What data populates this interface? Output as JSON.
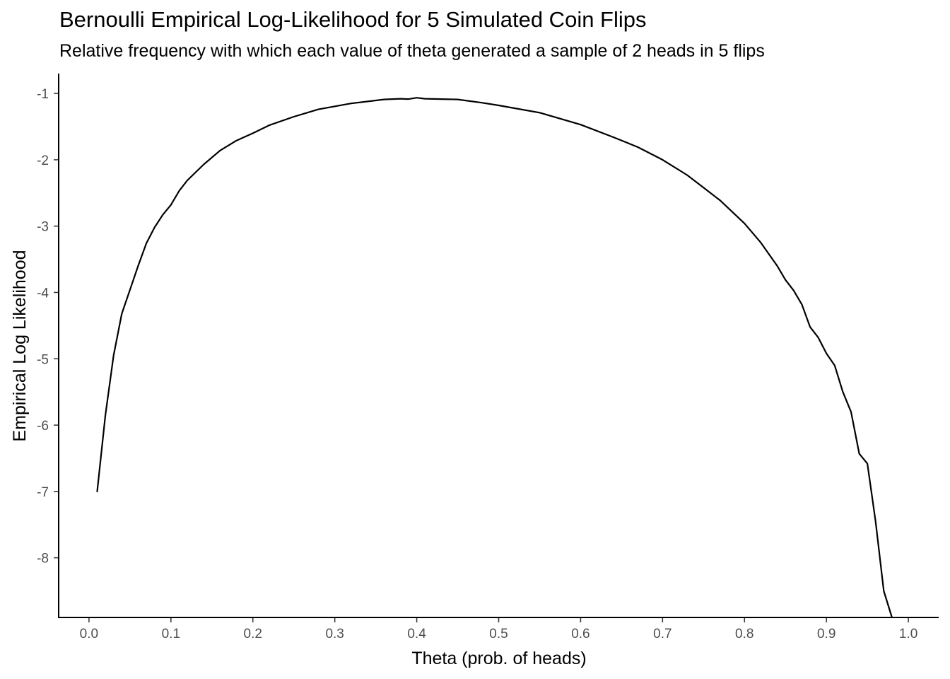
{
  "chart_data": {
    "type": "line",
    "title": "Bernoulli Empirical Log-Likelihood for 5 Simulated Coin Flips",
    "subtitle": "Relative frequency with which each value of theta generated a sample of 2 heads in 5 flips",
    "xlabel": "Theta (prob. of heads)",
    "ylabel": "Empirical Log Likelihood",
    "xlim": [
      -0.037,
      1.037
    ],
    "ylim": [
      -8.9,
      -0.7
    ],
    "x_ticks": [
      "0.0",
      "0.1",
      "0.2",
      "0.3",
      "0.4",
      "0.5",
      "0.6",
      "0.7",
      "0.8",
      "0.9",
      "1.0"
    ],
    "y_ticks": [
      "-1",
      "-2",
      "-3",
      "-4",
      "-5",
      "-6",
      "-7",
      "-8"
    ],
    "x_tick_values": [
      0,
      0.1,
      0.2,
      0.3,
      0.4,
      0.5,
      0.6,
      0.7,
      0.8,
      0.9,
      1.0
    ],
    "y_tick_values": [
      -1,
      -2,
      -3,
      -4,
      -5,
      -6,
      -7,
      -8
    ],
    "grid": false,
    "line_color": "#000000",
    "series": [
      {
        "x": [
          0.01,
          0.02,
          0.03,
          0.04,
          0.05,
          0.06,
          0.07,
          0.08,
          0.09,
          0.1,
          0.11,
          0.12,
          0.14,
          0.16,
          0.18,
          0.2,
          0.22,
          0.25,
          0.28,
          0.32,
          0.36,
          0.38,
          0.39,
          0.4,
          0.41,
          0.45,
          0.48,
          0.5,
          0.55,
          0.6,
          0.64,
          0.67,
          0.7,
          0.73,
          0.75,
          0.77,
          0.8,
          0.82,
          0.84,
          0.85,
          0.86,
          0.87,
          0.88,
          0.89,
          0.9,
          0.91,
          0.92,
          0.93,
          0.94,
          0.95,
          0.96,
          0.97,
          0.98
        ],
        "y": [
          -7.0,
          -5.85,
          -4.95,
          -4.32,
          -3.96,
          -3.6,
          -3.26,
          -3.02,
          -2.83,
          -2.68,
          -2.47,
          -2.31,
          -2.07,
          -1.86,
          -1.71,
          -1.6,
          -1.48,
          -1.35,
          -1.24,
          -1.15,
          -1.09,
          -1.08,
          -1.085,
          -1.065,
          -1.08,
          -1.09,
          -1.14,
          -1.18,
          -1.29,
          -1.47,
          -1.66,
          -1.81,
          -2.0,
          -2.23,
          -2.42,
          -2.61,
          -2.96,
          -3.25,
          -3.6,
          -3.81,
          -3.97,
          -4.18,
          -4.52,
          -4.68,
          -4.92,
          -5.1,
          -5.5,
          -5.8,
          -6.43,
          -6.58,
          -7.45,
          -8.5,
          -8.9
        ]
      }
    ]
  }
}
